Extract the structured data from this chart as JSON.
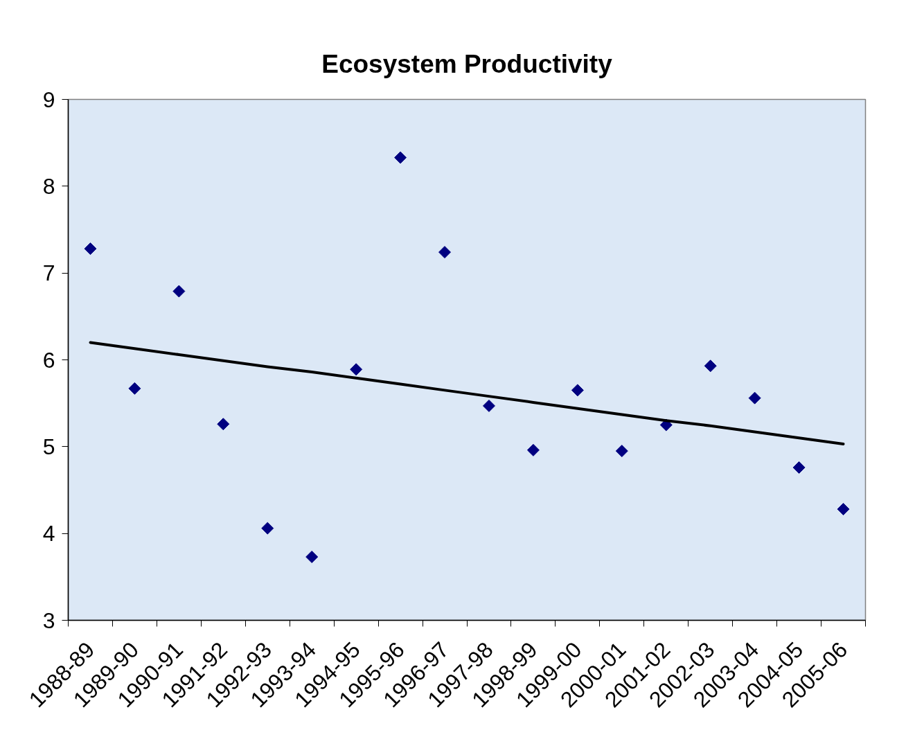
{
  "chart_data": {
    "type": "scatter",
    "title": "Ecosystem Productivity",
    "categories": [
      "1988-89",
      "1989-90",
      "1990-91",
      "1991-92",
      "1992-93",
      "1993-94",
      "1994-95",
      "1995-96",
      "1996-97",
      "1997-98",
      "1998-99",
      "1999-00",
      "2000-01",
      "2001-02",
      "2002-03",
      "2003-04",
      "2004-05",
      "2005-06"
    ],
    "ylim": [
      3,
      9
    ],
    "yticks": [
      3,
      4,
      5,
      6,
      7,
      8,
      9
    ],
    "grid": false,
    "series": [
      {
        "color": "#000080",
        "marker": "diamond",
        "values": [
          7.28,
          5.67,
          6.79,
          5.26,
          4.06,
          3.73,
          5.89,
          8.33,
          7.24,
          5.47,
          4.96,
          5.65,
          4.95,
          5.25,
          5.93,
          5.56,
          4.76,
          4.28
        ]
      },
      {
        "type": "line",
        "color": "#000000",
        "line_style": "solid",
        "values": [
          6.2,
          6.13,
          6.06,
          5.99,
          5.92,
          5.86,
          5.79,
          5.72,
          5.65,
          5.58,
          5.51,
          5.44,
          5.37,
          5.3,
          5.24,
          5.17,
          5.1,
          5.03
        ]
      }
    ]
  }
}
